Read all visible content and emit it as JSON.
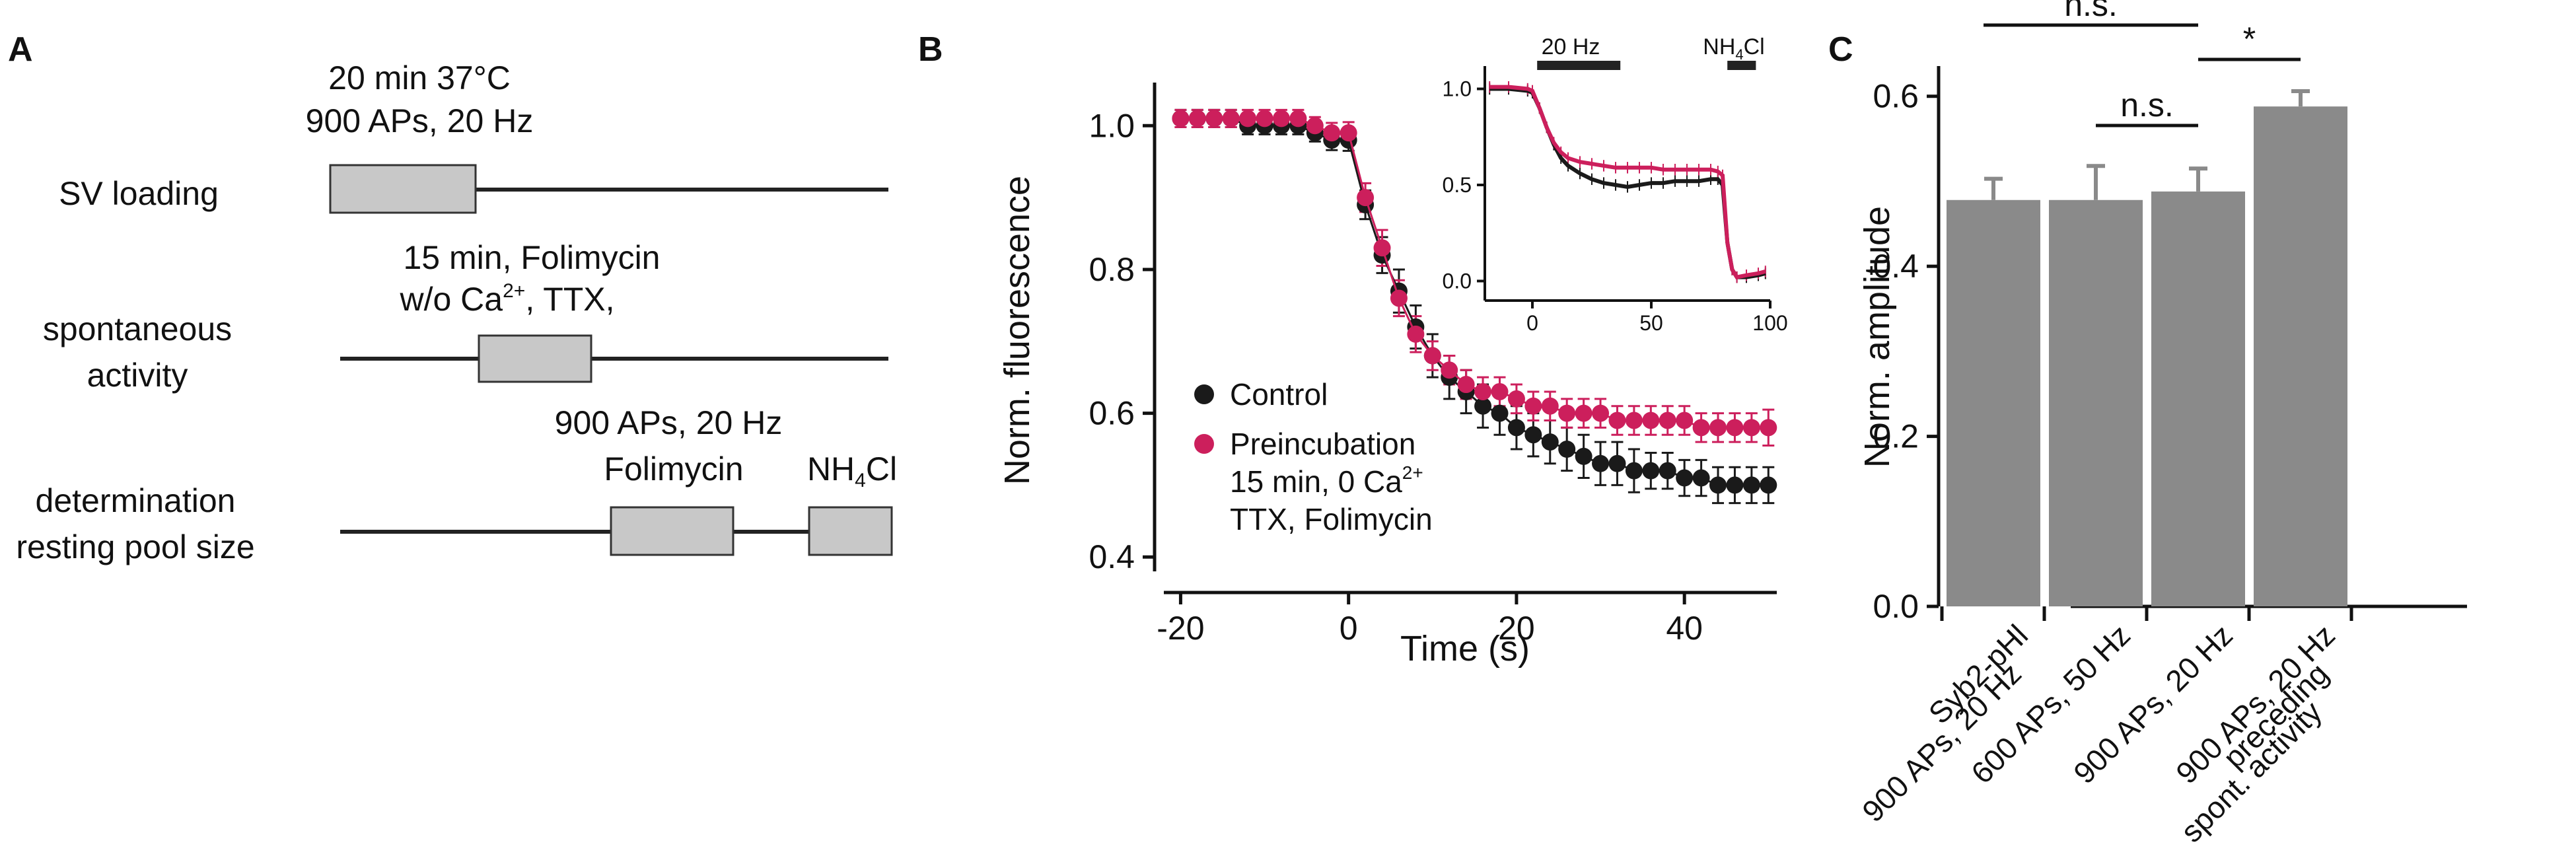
{
  "panel_a": {
    "label": "A",
    "rows": [
      {
        "name": "SV loading",
        "lines": [
          "SV loading"
        ],
        "annot": [
          "20 min 37°C",
          "900 APs, 20 Hz"
        ]
      },
      {
        "name": "spontaneous activity",
        "lines": [
          "spontaneous",
          "activity"
        ],
        "annot_pre": "15 min, Folimycin",
        "annot_sub_pre": "w/o Ca",
        "annot_sub_sup": "2+",
        "annot_sub_post": ", TTX,"
      },
      {
        "name": "determination resting pool size",
        "lines": [
          "determination",
          "resting pool size"
        ],
        "annot_top": "900 APs, 20 Hz",
        "box1_label": "Folimycin",
        "box2_label_pre": "NH",
        "box2_label_sub": "4",
        "box2_label_post": "Cl"
      }
    ]
  },
  "chart_data": [
    {
      "panel": "B",
      "type": "line",
      "xlabel": "Time (s)",
      "ylabel": "Norm. fluorescence",
      "xlim": [
        -22,
        51
      ],
      "ylim": [
        0.38,
        1.06
      ],
      "xticks": [
        "-20",
        "0",
        "20",
        "40"
      ],
      "xtick_values": [
        -20,
        0,
        20,
        40
      ],
      "yticks": [
        "0.4",
        "0.6",
        "0.8",
        "1.0"
      ],
      "ytick_values": [
        0.4,
        0.6,
        0.8,
        1.0
      ],
      "x": [
        -20,
        -18,
        -16,
        -14,
        -12,
        -10,
        -8,
        -6,
        -4,
        -2,
        0,
        2,
        4,
        6,
        8,
        10,
        12,
        14,
        16,
        18,
        20,
        22,
        24,
        26,
        28,
        30,
        32,
        34,
        36,
        38,
        40,
        42,
        44,
        46,
        48,
        50
      ],
      "series": [
        {
          "name": "Control",
          "color": "#1a1a1a",
          "values": [
            1.01,
            1.01,
            1.01,
            1.01,
            1.0,
            1.0,
            1.0,
            1.0,
            0.99,
            0.98,
            0.98,
            0.89,
            0.82,
            0.77,
            0.72,
            0.68,
            0.65,
            0.63,
            0.61,
            0.6,
            0.58,
            0.57,
            0.56,
            0.55,
            0.54,
            0.53,
            0.53,
            0.52,
            0.52,
            0.52,
            0.51,
            0.51,
            0.5,
            0.5,
            0.5,
            0.5
          ],
          "errors": [
            0.012,
            0.012,
            0.012,
            0.012,
            0.012,
            0.012,
            0.012,
            0.012,
            0.012,
            0.014,
            0.015,
            0.02,
            0.025,
            0.03,
            0.03,
            0.03,
            0.03,
            0.03,
            0.03,
            0.03,
            0.03,
            0.03,
            0.03,
            0.03,
            0.03,
            0.03,
            0.03,
            0.03,
            0.025,
            0.025,
            0.025,
            0.025,
            0.025,
            0.025,
            0.025,
            0.025
          ]
        },
        {
          "name": "Preincubation",
          "color": "#cc1f5c",
          "values": [
            1.01,
            1.01,
            1.01,
            1.01,
            1.01,
            1.01,
            1.01,
            1.01,
            1.0,
            0.99,
            0.99,
            0.9,
            0.83,
            0.76,
            0.71,
            0.68,
            0.66,
            0.64,
            0.63,
            0.63,
            0.62,
            0.61,
            0.61,
            0.6,
            0.6,
            0.6,
            0.59,
            0.59,
            0.59,
            0.59,
            0.59,
            0.58,
            0.58,
            0.58,
            0.58,
            0.58
          ],
          "errors": [
            0.012,
            0.012,
            0.012,
            0.012,
            0.012,
            0.012,
            0.012,
            0.012,
            0.012,
            0.014,
            0.015,
            0.02,
            0.025,
            0.025,
            0.025,
            0.02,
            0.02,
            0.02,
            0.02,
            0.02,
            0.02,
            0.02,
            0.02,
            0.02,
            0.02,
            0.02,
            0.02,
            0.02,
            0.02,
            0.02,
            0.02,
            0.02,
            0.02,
            0.02,
            0.02,
            0.025
          ]
        }
      ],
      "legend": [
        {
          "label": "Control",
          "color": "#1a1a1a"
        },
        {
          "label": "Preincubation",
          "color": "#cc1f5c"
        }
      ],
      "legend_note_lines": [
        "15 min, 0 Ca",
        "TTX, Folimycin"
      ],
      "legend_note_sup": "2+",
      "legend_position": "lower-center"
    },
    {
      "panel": "B-inset",
      "type": "line",
      "xlim": [
        -20,
        100
      ],
      "ylim": [
        -0.05,
        1.05
      ],
      "xticks": [
        "0",
        "50",
        "100"
      ],
      "xtick_values": [
        0,
        50,
        100
      ],
      "yticks": [
        "0.0",
        "0.5",
        "1.0"
      ],
      "ytick_values": [
        0.0,
        0.5,
        1.0
      ],
      "stim_bars": [
        {
          "label": "20 Hz",
          "x0": 2,
          "x1": 37
        },
        {
          "label_pre": "NH",
          "label_sub": "4",
          "label_post": "Cl",
          "x0": 82,
          "x1": 94
        }
      ],
      "series": [
        {
          "name": "Control",
          "color": "#1a1a1a",
          "points": [
            [
              -18,
              1.0
            ],
            [
              -10,
              1.0
            ],
            [
              -2,
              0.99
            ],
            [
              0,
              0.98
            ],
            [
              3,
              0.9
            ],
            [
              6,
              0.8
            ],
            [
              9,
              0.71
            ],
            [
              12,
              0.64
            ],
            [
              15,
              0.6
            ],
            [
              20,
              0.56
            ],
            [
              25,
              0.53
            ],
            [
              30,
              0.51
            ],
            [
              35,
              0.5
            ],
            [
              40,
              0.49
            ],
            [
              45,
              0.5
            ],
            [
              50,
              0.51
            ],
            [
              55,
              0.51
            ],
            [
              60,
              0.52
            ],
            [
              65,
              0.52
            ],
            [
              70,
              0.52
            ],
            [
              75,
              0.53
            ],
            [
              78,
              0.53
            ],
            [
              80,
              0.5
            ],
            [
              82,
              0.2
            ],
            [
              84,
              0.06
            ],
            [
              86,
              0.02
            ],
            [
              90,
              0.02
            ],
            [
              95,
              0.03
            ],
            [
              98,
              0.04
            ]
          ]
        },
        {
          "name": "Preincubation",
          "color": "#cc1f5c",
          "points": [
            [
              -18,
              1.01
            ],
            [
              -10,
              1.01
            ],
            [
              -2,
              1.0
            ],
            [
              0,
              0.99
            ],
            [
              3,
              0.9
            ],
            [
              6,
              0.8
            ],
            [
              9,
              0.72
            ],
            [
              12,
              0.67
            ],
            [
              15,
              0.64
            ],
            [
              20,
              0.62
            ],
            [
              25,
              0.61
            ],
            [
              30,
              0.6
            ],
            [
              35,
              0.59
            ],
            [
              40,
              0.59
            ],
            [
              45,
              0.59
            ],
            [
              50,
              0.59
            ],
            [
              55,
              0.58
            ],
            [
              60,
              0.58
            ],
            [
              65,
              0.58
            ],
            [
              70,
              0.58
            ],
            [
              75,
              0.58
            ],
            [
              78,
              0.57
            ],
            [
              80,
              0.55
            ],
            [
              82,
              0.2
            ],
            [
              84,
              0.06
            ],
            [
              86,
              0.02
            ],
            [
              90,
              0.03
            ],
            [
              95,
              0.04
            ],
            [
              98,
              0.05
            ]
          ]
        }
      ]
    },
    {
      "panel": "C",
      "type": "bar",
      "ylabel": "Norm. amplitude",
      "ylim": [
        0,
        0.62
      ],
      "yticks": [
        "0.0",
        "0.2",
        "0.4",
        "0.6"
      ],
      "ytick_values": [
        0.0,
        0.2,
        0.4,
        0.6
      ],
      "categories": [
        "Syb2-pHl 900 APs, 20 Hz",
        "600 APs, 50 Hz",
        "900 APs, 20 Hz",
        "900 APs, 20 Hz preceding spont. activity"
      ],
      "category_lines": [
        [
          "Syb2-pHl",
          "900 APs, 20 Hz"
        ],
        [
          "600 APs, 50 Hz"
        ],
        [
          "900 APs, 20 Hz"
        ],
        [
          "900 APs, 20 Hz",
          "preceding",
          "spont. activity"
        ]
      ],
      "values": [
        0.478,
        0.478,
        0.488,
        0.588
      ],
      "errors": [
        0.025,
        0.04,
        0.027,
        0.018
      ],
      "bar_color": "#8a8a8a",
      "significance": [
        {
          "label": "n.s.",
          "from": 0,
          "to": 2,
          "level": 0
        },
        {
          "label": "*",
          "from": 2,
          "to": 3,
          "level": 1
        },
        {
          "label": "n.s.",
          "from": 1,
          "to": 2,
          "level": 2
        }
      ]
    }
  ],
  "panel_labels": {
    "a": "A",
    "b": "B",
    "c": "C"
  }
}
